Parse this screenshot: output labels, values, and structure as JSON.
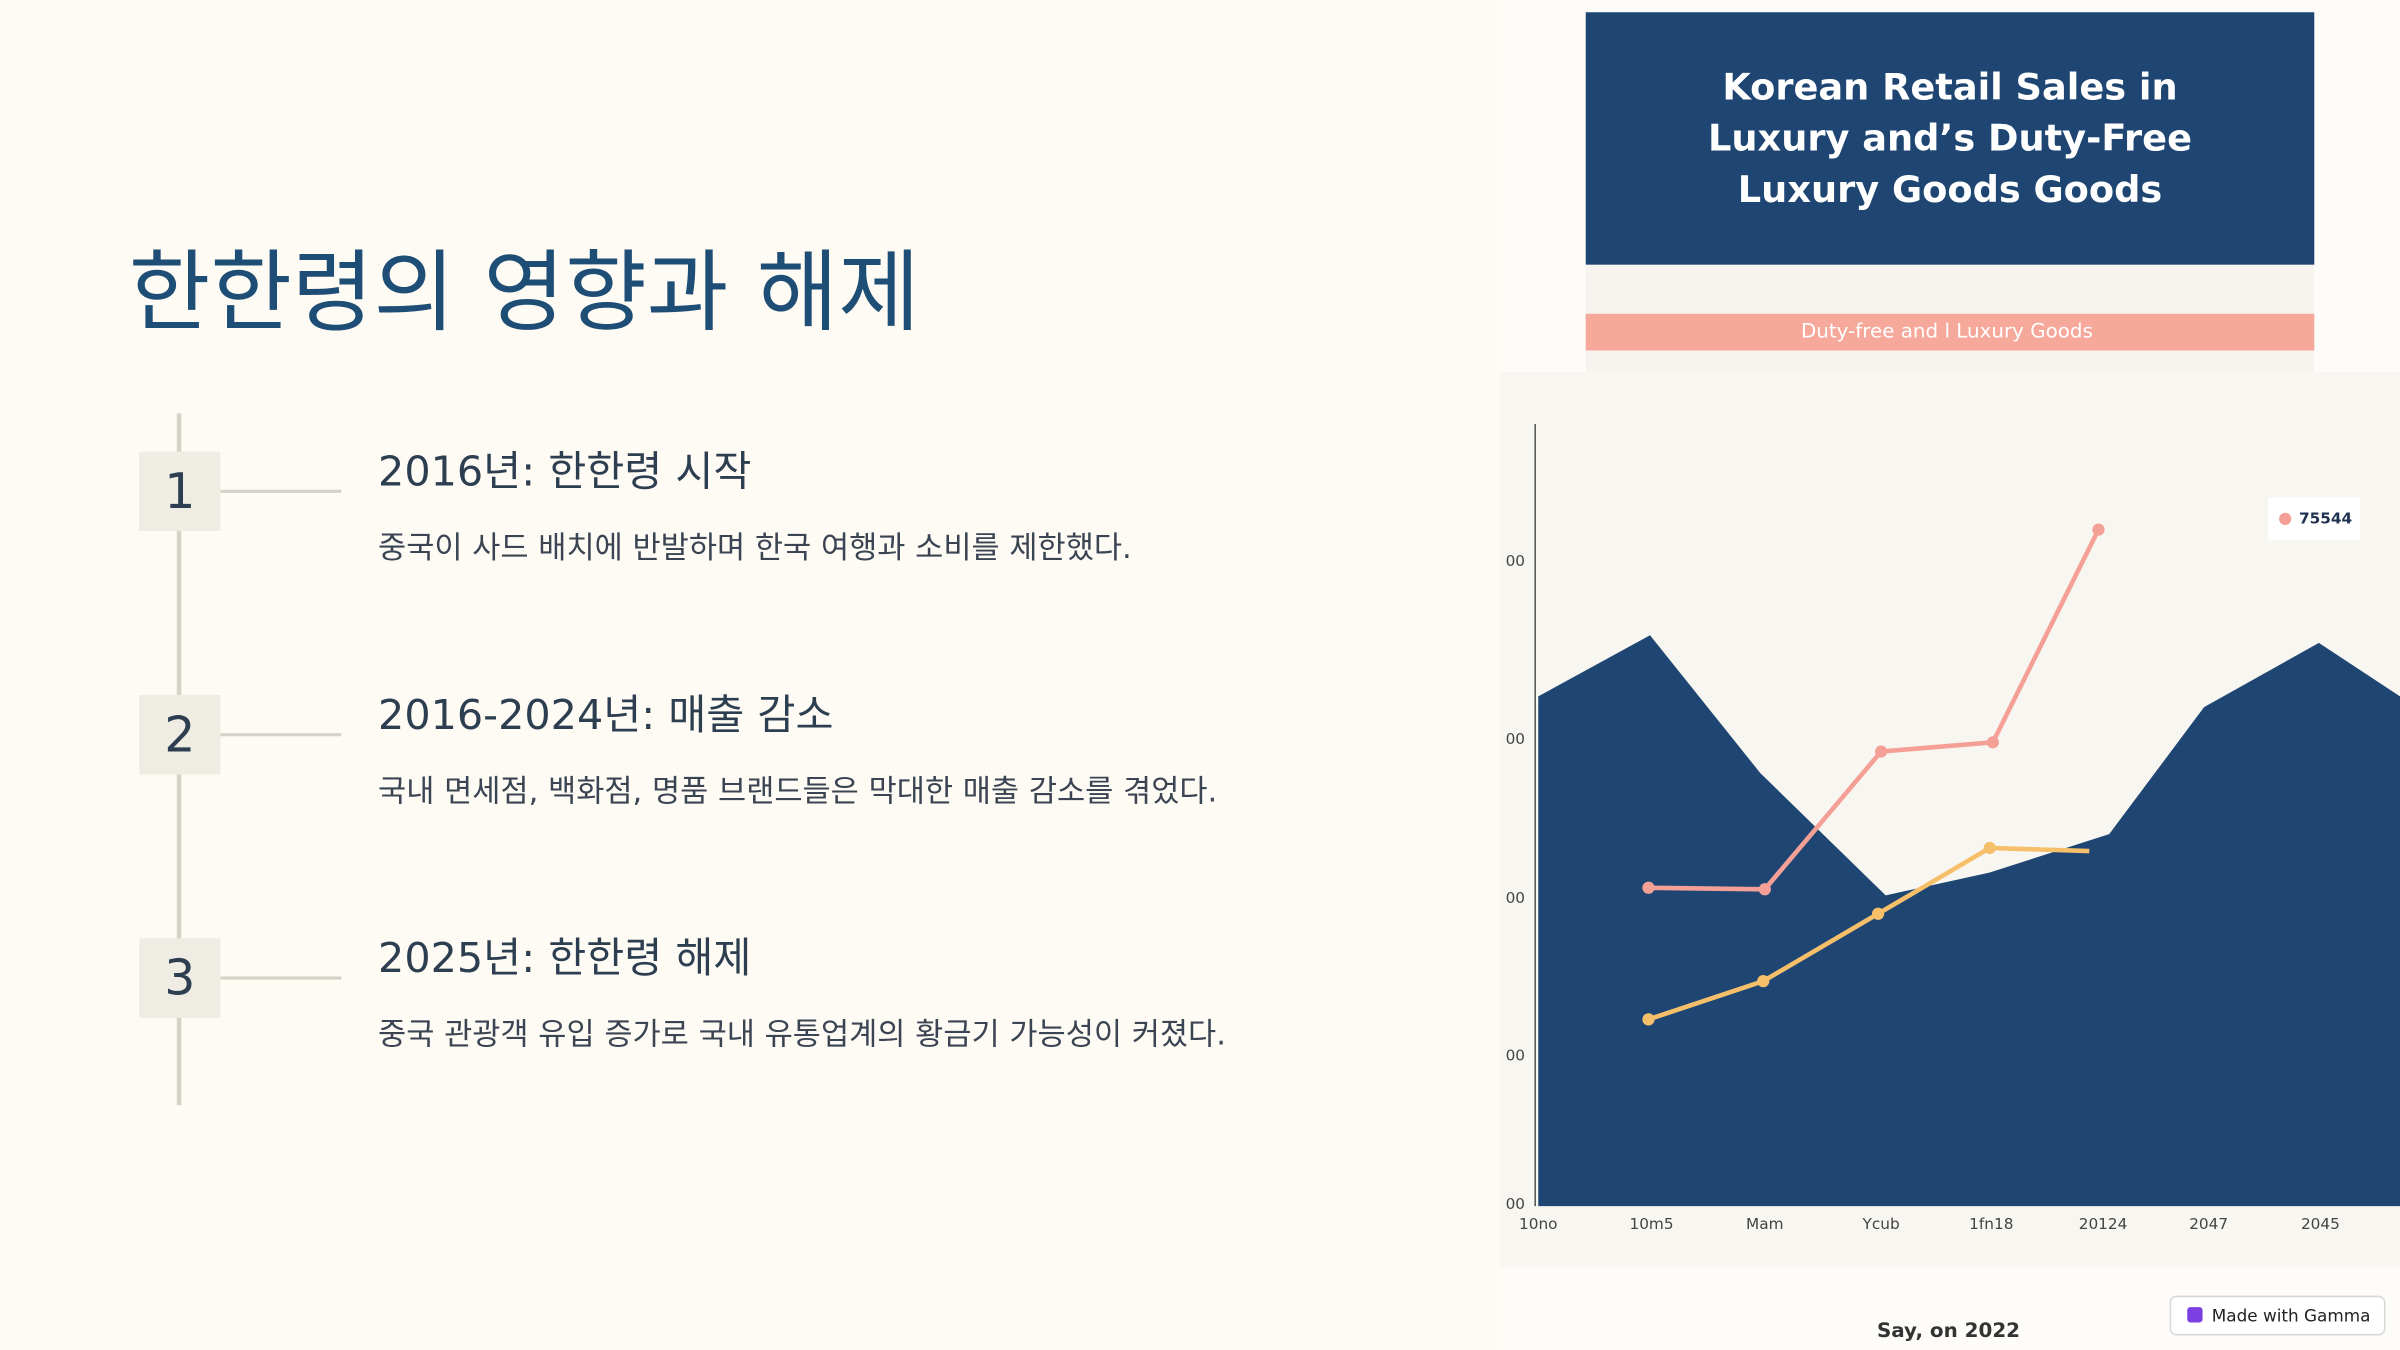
{
  "slide": {
    "title": "한한령의 영향과 해제",
    "steps": [
      {
        "number": "1",
        "heading": "2016년: 한한령 시작",
        "text": "중국이 사드 배치에 반발하며 한국 여행과 소비를 제한했다."
      },
      {
        "number": "2",
        "heading": "2016-2024년: 매출 감소",
        "text": "국내 면세점, 백화점, 명품 브랜드들은 막대한 매출 감소를 겪었다."
      },
      {
        "number": "3",
        "heading": "2025년: 한한령 해제",
        "text": "중국 관광객 유입 증가로 국내 유통업계의 황금기 가능성이 커졌다."
      }
    ]
  },
  "image": {
    "title_lines": [
      "Korean Retail Sales in",
      "Luxury  and’s Duty-Free",
      "Luxury Goods  Goods"
    ],
    "subtitle": "Duty-free and l Luxury Goods",
    "legend": "75544",
    "y_labels": [
      "00",
      "00",
      "00",
      "00",
      "00"
    ],
    "x_labels": [
      "10no",
      "10m5",
      "Mam",
      "Ycub",
      "1fn18",
      "20124",
      "2047",
      "2045"
    ],
    "caption": "Say, on 2022"
  },
  "badge": "Made with Gamma"
}
